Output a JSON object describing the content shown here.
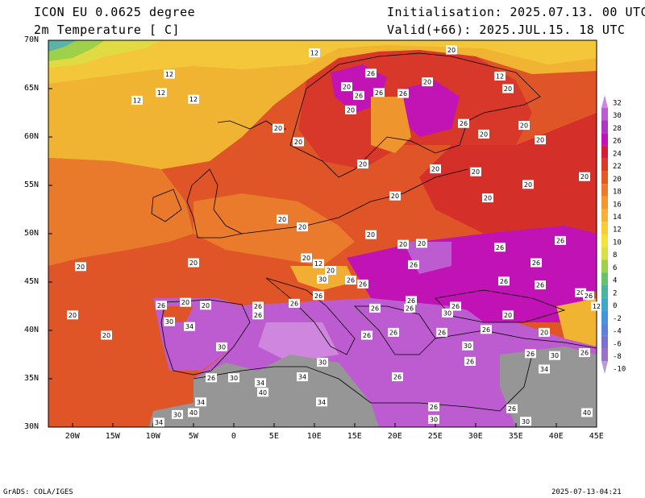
{
  "header": {
    "model": "ICON EU 0.0625 degree",
    "variable": "2m Temperature [ C]",
    "init": "Initialisation: 2025.07.13. 00 UTC",
    "valid": "Valid(+66): 2025.JUL.15. 18 UTC"
  },
  "map": {
    "lon_range": [
      -23,
      45
    ],
    "lat_range": [
      30,
      70
    ],
    "lat_labels": [
      "30N",
      "35N",
      "40N",
      "45N",
      "50N",
      "55N",
      "60N",
      "65N",
      "70N"
    ],
    "lon_labels": [
      "20W",
      "15W",
      "10W",
      "5W",
      "0",
      "5E",
      "10E",
      "15E",
      "20E",
      "25E",
      "30E",
      "35E",
      "40E",
      "45E"
    ],
    "contour_labels": [
      {
        "lon": 10,
        "lat": 68.7,
        "text": "12"
      },
      {
        "lon": -8,
        "lat": 66.5,
        "text": "12"
      },
      {
        "lon": -9,
        "lat": 64.6,
        "text": "12"
      },
      {
        "lon": -12,
        "lat": 63.8,
        "text": "12"
      },
      {
        "lon": -5,
        "lat": 63.9,
        "text": "12"
      },
      {
        "lon": 33,
        "lat": 66.3,
        "text": "12"
      },
      {
        "lon": 27,
        "lat": 69.0,
        "text": "20"
      },
      {
        "lon": 17,
        "lat": 66.6,
        "text": "26"
      },
      {
        "lon": 24,
        "lat": 65.7,
        "text": "20"
      },
      {
        "lon": 14,
        "lat": 65.2,
        "text": "20"
      },
      {
        "lon": 15.5,
        "lat": 64.3,
        "text": "26"
      },
      {
        "lon": 18,
        "lat": 64.6,
        "text": "26"
      },
      {
        "lon": 21,
        "lat": 64.5,
        "text": "26"
      },
      {
        "lon": 34,
        "lat": 65.0,
        "text": "20"
      },
      {
        "lon": 14.5,
        "lat": 62.8,
        "text": "20"
      },
      {
        "lon": 28.5,
        "lat": 61.4,
        "text": "26"
      },
      {
        "lon": 31,
        "lat": 60.3,
        "text": "20"
      },
      {
        "lon": 36,
        "lat": 61.2,
        "text": "20"
      },
      {
        "lon": 5.5,
        "lat": 60.9,
        "text": "20"
      },
      {
        "lon": 8,
        "lat": 59.5,
        "text": "20"
      },
      {
        "lon": 38,
        "lat": 59.7,
        "text": "20"
      },
      {
        "lon": 16,
        "lat": 57.2,
        "text": "20"
      },
      {
        "lon": 25,
        "lat": 56.7,
        "text": "20"
      },
      {
        "lon": 30,
        "lat": 56.4,
        "text": "20"
      },
      {
        "lon": 43.5,
        "lat": 55.9,
        "text": "20"
      },
      {
        "lon": 36.5,
        "lat": 55.1,
        "text": "20"
      },
      {
        "lon": 20,
        "lat": 53.9,
        "text": "20"
      },
      {
        "lon": 31.5,
        "lat": 53.7,
        "text": "20"
      },
      {
        "lon": 6,
        "lat": 51.5,
        "text": "20"
      },
      {
        "lon": 8.5,
        "lat": 50.7,
        "text": "20"
      },
      {
        "lon": 17,
        "lat": 49.9,
        "text": "20"
      },
      {
        "lon": 21,
        "lat": 48.9,
        "text": "20"
      },
      {
        "lon": 23.3,
        "lat": 49.0,
        "text": "20"
      },
      {
        "lon": 33,
        "lat": 48.6,
        "text": "26"
      },
      {
        "lon": 40.5,
        "lat": 49.3,
        "text": "26"
      },
      {
        "lon": -19,
        "lat": 46.6,
        "text": "20"
      },
      {
        "lon": -5,
        "lat": 47.0,
        "text": "20"
      },
      {
        "lon": 9,
        "lat": 47.5,
        "text": "20"
      },
      {
        "lon": 10.5,
        "lat": 46.9,
        "text": "12"
      },
      {
        "lon": 12,
        "lat": 46.2,
        "text": "20"
      },
      {
        "lon": 11,
        "lat": 45.3,
        "text": "30"
      },
      {
        "lon": 22.3,
        "lat": 46.8,
        "text": "26"
      },
      {
        "lon": 37.5,
        "lat": 47.0,
        "text": "26"
      },
      {
        "lon": 14.5,
        "lat": 45.2,
        "text": "26"
      },
      {
        "lon": 16,
        "lat": 44.8,
        "text": "26"
      },
      {
        "lon": 33.5,
        "lat": 45.1,
        "text": "26"
      },
      {
        "lon": 38,
        "lat": 44.7,
        "text": "26"
      },
      {
        "lon": 10.5,
        "lat": 43.6,
        "text": "26"
      },
      {
        "lon": 22,
        "lat": 43.1,
        "text": "26"
      },
      {
        "lon": 43,
        "lat": 43.9,
        "text": "20"
      },
      {
        "lon": 44,
        "lat": 43.6,
        "text": "26"
      },
      {
        "lon": -9,
        "lat": 42.6,
        "text": "26"
      },
      {
        "lon": -6,
        "lat": 42.9,
        "text": "20"
      },
      {
        "lon": -3.5,
        "lat": 42.6,
        "text": "20"
      },
      {
        "lon": 3,
        "lat": 42.5,
        "text": "26"
      },
      {
        "lon": 7.5,
        "lat": 42.8,
        "text": "26"
      },
      {
        "lon": 17.5,
        "lat": 42.3,
        "text": "26"
      },
      {
        "lon": 21.8,
        "lat": 42.3,
        "text": "26"
      },
      {
        "lon": 27.5,
        "lat": 42.5,
        "text": "26"
      },
      {
        "lon": 45,
        "lat": 42.5,
        "text": "12"
      },
      {
        "lon": -20,
        "lat": 41.6,
        "text": "20"
      },
      {
        "lon": -8,
        "lat": 40.9,
        "text": "30"
      },
      {
        "lon": -5.5,
        "lat": 40.4,
        "text": "34"
      },
      {
        "lon": 3,
        "lat": 41.6,
        "text": "26"
      },
      {
        "lon": 26.5,
        "lat": 41.8,
        "text": "30"
      },
      {
        "lon": 34,
        "lat": 41.6,
        "text": "20"
      },
      {
        "lon": -15.8,
        "lat": 39.5,
        "text": "20"
      },
      {
        "lon": 16.5,
        "lat": 39.5,
        "text": "26"
      },
      {
        "lon": 19.8,
        "lat": 39.8,
        "text": "26"
      },
      {
        "lon": 25.8,
        "lat": 39.8,
        "text": "26"
      },
      {
        "lon": 31.3,
        "lat": 40.1,
        "text": "26"
      },
      {
        "lon": 38.5,
        "lat": 39.8,
        "text": "20"
      },
      {
        "lon": -1.5,
        "lat": 38.3,
        "text": "30"
      },
      {
        "lon": 29,
        "lat": 38.4,
        "text": "30"
      },
      {
        "lon": 36.8,
        "lat": 37.6,
        "text": "26"
      },
      {
        "lon": 39.8,
        "lat": 37.4,
        "text": "30"
      },
      {
        "lon": 43.5,
        "lat": 37.7,
        "text": "26"
      },
      {
        "lon": 11,
        "lat": 36.7,
        "text": "30"
      },
      {
        "lon": 29.3,
        "lat": 36.8,
        "text": "26"
      },
      {
        "lon": 38.5,
        "lat": 36.0,
        "text": "34"
      },
      {
        "lon": -2.8,
        "lat": 35.1,
        "text": "26"
      },
      {
        "lon": 0,
        "lat": 35.1,
        "text": "30"
      },
      {
        "lon": 3.3,
        "lat": 34.6,
        "text": "34"
      },
      {
        "lon": 8.5,
        "lat": 35.2,
        "text": "34"
      },
      {
        "lon": 20.3,
        "lat": 35.2,
        "text": "26"
      },
      {
        "lon": 3.6,
        "lat": 33.6,
        "text": "40"
      },
      {
        "lon": -4.1,
        "lat": 32.6,
        "text": "34"
      },
      {
        "lon": 10.9,
        "lat": 32.6,
        "text": "34"
      },
      {
        "lon": 24.8,
        "lat": 32.1,
        "text": "26"
      },
      {
        "lon": 34.5,
        "lat": 31.9,
        "text": "26"
      },
      {
        "lon": -7,
        "lat": 31.3,
        "text": "30"
      },
      {
        "lon": -5,
        "lat": 31.5,
        "text": "40"
      },
      {
        "lon": 43.8,
        "lat": 31.5,
        "text": "40"
      },
      {
        "lon": -9.3,
        "lat": 30.5,
        "text": "34"
      },
      {
        "lon": 24.8,
        "lat": 30.8,
        "text": "30"
      },
      {
        "lon": 36.2,
        "lat": 30.6,
        "text": "30"
      }
    ]
  },
  "colorbar": {
    "levels": [
      "32",
      "30",
      "28",
      "26",
      "24",
      "22",
      "20",
      "18",
      "16",
      "14",
      "12",
      "10",
      "8",
      "6",
      "4",
      "2",
      "0",
      "-2",
      "-4",
      "-6",
      "-8",
      "-10"
    ],
    "colors": [
      "#cf87dd",
      "#bd5cd0",
      "#ac38bf",
      "#c012b5",
      "#d21e38",
      "#da3a25",
      "#e25a26",
      "#ea7a2c",
      "#ef992f",
      "#f4b334",
      "#f5cd37",
      "#f5e13c",
      "#d8e044",
      "#9fd04a",
      "#67c06a",
      "#4ab4a0",
      "#41a8c8",
      "#4595d8",
      "#5a82d6",
      "#7a72cc",
      "#9a72c6",
      "#b69bd6"
    ]
  },
  "footer": {
    "left": "GrADS: COLA/IGES",
    "right": "2025-07-13-04:21"
  }
}
